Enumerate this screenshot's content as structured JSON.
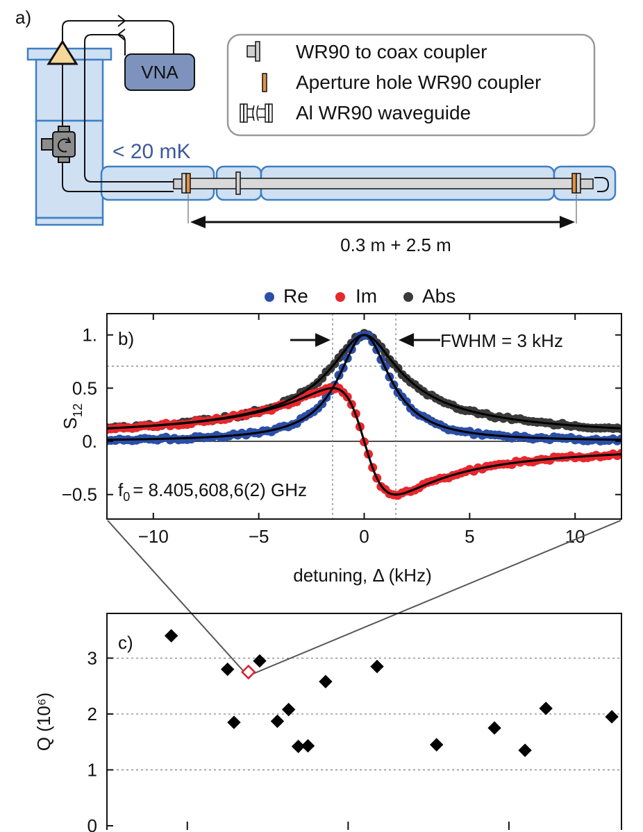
{
  "panel_a": {
    "label": "a)",
    "vna_label": "VNA",
    "temp_label": "< 20 mK",
    "distance_label": "0.3 m + 2.5 m",
    "legend": [
      {
        "icon": "coax-coupler-icon",
        "text": "WR90 to coax coupler"
      },
      {
        "icon": "aperture-coupler-icon",
        "text": "Aperture hole WR90 coupler"
      },
      {
        "icon": "waveguide-icon",
        "text": "Al WR90 waveguide"
      }
    ],
    "colors": {
      "cryostat_fill": "#cfe0f2",
      "cryostat_stroke": "#3d7fc4",
      "vna_fill": "#7d93bd",
      "amp_fill": "#f6d79a",
      "coupler_orange": "#e09247"
    }
  },
  "chart_data": [
    {
      "type": "scatter",
      "panel_label": "b)",
      "title": "",
      "xlabel": "detuning, Δ (kHz)",
      "ylabel_main": "S",
      "ylabel_sub": "12",
      "xlim": [
        -12.2,
        12.2
      ],
      "ylim": [
        -0.73,
        1.2
      ],
      "x_ticks": [
        -10,
        -5,
        0,
        5,
        10
      ],
      "x_tick_labels": [
        "−10",
        "−5",
        "0",
        "5",
        "10"
      ],
      "y_ticks": [
        1.0,
        0.5,
        0.0,
        -0.5
      ],
      "y_tick_labels": [
        "1.",
        "0.5",
        "0.",
        "−0.5"
      ],
      "legend": {
        "placement": "top-center",
        "entries": [
          {
            "name": "Re",
            "color": "#2b4fa6"
          },
          {
            "name": "Im",
            "color": "#e8262d"
          },
          {
            "name": "Abs",
            "color": "#3a3a3a"
          }
        ]
      },
      "fwhm_label": "FWHM = 3 kHz",
      "fwhm_markers_x": [
        -1.5,
        1.5
      ],
      "half_power_y": 0.707,
      "f0_main": "f",
      "f0_sub": "0",
      "f0_value": "= 8.405,608,6(2) GHz",
      "model": {
        "f0_offset_khz": 0,
        "fwhm_khz": 3,
        "background": 0.0
      },
      "series": [
        {
          "name": "Re",
          "color": "#2b4fa6",
          "x": [
            -12,
            -11,
            -10,
            -9,
            -8,
            -7,
            -6,
            -5,
            -4,
            -3.5,
            -3,
            -2.5,
            -2,
            -1.5,
            -1,
            -0.5,
            0,
            0.5,
            1,
            1.5,
            2,
            2.5,
            3,
            3.5,
            4,
            5,
            6,
            7,
            8,
            9,
            10,
            11,
            12
          ],
          "values": [
            0.015,
            0.018,
            0.022,
            0.027,
            0.034,
            0.044,
            0.058,
            0.083,
            0.123,
            0.155,
            0.2,
            0.265,
            0.36,
            0.5,
            0.69,
            0.9,
            1.0,
            0.9,
            0.69,
            0.5,
            0.36,
            0.265,
            0.2,
            0.155,
            0.123,
            0.083,
            0.058,
            0.044,
            0.034,
            0.027,
            0.022,
            0.018,
            0.015
          ]
        },
        {
          "name": "Im",
          "color": "#e8262d",
          "x": [
            -12,
            -11,
            -10,
            -9,
            -8,
            -7,
            -6,
            -5,
            -4,
            -3.5,
            -3,
            -2.5,
            -2,
            -1.5,
            -1,
            -0.5,
            0,
            0.5,
            1,
            1.5,
            2,
            2.5,
            3,
            3.5,
            4,
            5,
            6,
            7,
            8,
            9,
            10,
            11,
            12
          ],
          "values": [
            0.124,
            0.135,
            0.148,
            0.164,
            0.184,
            0.209,
            0.241,
            0.281,
            0.328,
            0.361,
            0.4,
            0.441,
            0.48,
            0.5,
            0.46,
            0.3,
            0.0,
            -0.3,
            -0.46,
            -0.5,
            -0.48,
            -0.441,
            -0.4,
            -0.361,
            -0.328,
            -0.281,
            -0.241,
            -0.209,
            -0.184,
            -0.164,
            -0.148,
            -0.135,
            -0.124
          ]
        },
        {
          "name": "Abs",
          "color": "#3a3a3a",
          "x": [
            -12,
            -11,
            -10,
            -9,
            -8,
            -7,
            -6,
            -5,
            -4,
            -3.5,
            -3,
            -2.5,
            -2,
            -1.5,
            -1,
            -0.5,
            0,
            0.5,
            1,
            1.5,
            2,
            2.5,
            3,
            3.5,
            4,
            5,
            6,
            7,
            8,
            9,
            10,
            11,
            12
          ],
          "values": [
            0.125,
            0.136,
            0.15,
            0.166,
            0.187,
            0.214,
            0.247,
            0.29,
            0.35,
            0.393,
            0.447,
            0.515,
            0.6,
            0.707,
            0.83,
            0.949,
            1.0,
            0.949,
            0.83,
            0.707,
            0.6,
            0.515,
            0.447,
            0.393,
            0.35,
            0.29,
            0.247,
            0.214,
            0.187,
            0.166,
            0.15,
            0.136,
            0.125
          ]
        }
      ]
    },
    {
      "type": "scatter",
      "panel_label": "c)",
      "title": "",
      "xlabel": "",
      "ylabel": "Q (10⁶)",
      "ylim": [
        0,
        3.8
      ],
      "xlim": [
        0,
        32
      ],
      "y_ticks": [
        0,
        1,
        2,
        3
      ],
      "y_tick_labels": [
        "0",
        "1",
        "2",
        "3"
      ],
      "grid": "horizontal dotted at 1, 2, 3",
      "x_minor_tick_positions": [
        5,
        15,
        25
      ],
      "highlighted_point_index": 2,
      "series": [
        {
          "name": "",
          "color": "#000000",
          "marker": "diamond",
          "x": [
            4,
            7.5,
            8.8,
            9.5,
            7.9,
            10.6,
            11.3,
            11.9,
            12.5,
            13.6,
            16.8,
            20.5,
            24.1,
            26.0,
            27.3,
            31.4
          ],
          "values": [
            3.4,
            2.8,
            2.75,
            2.95,
            1.85,
            1.87,
            2.08,
            1.42,
            1.43,
            2.58,
            2.85,
            1.45,
            1.75,
            1.35,
            2.1,
            1.95
          ]
        }
      ]
    }
  ]
}
